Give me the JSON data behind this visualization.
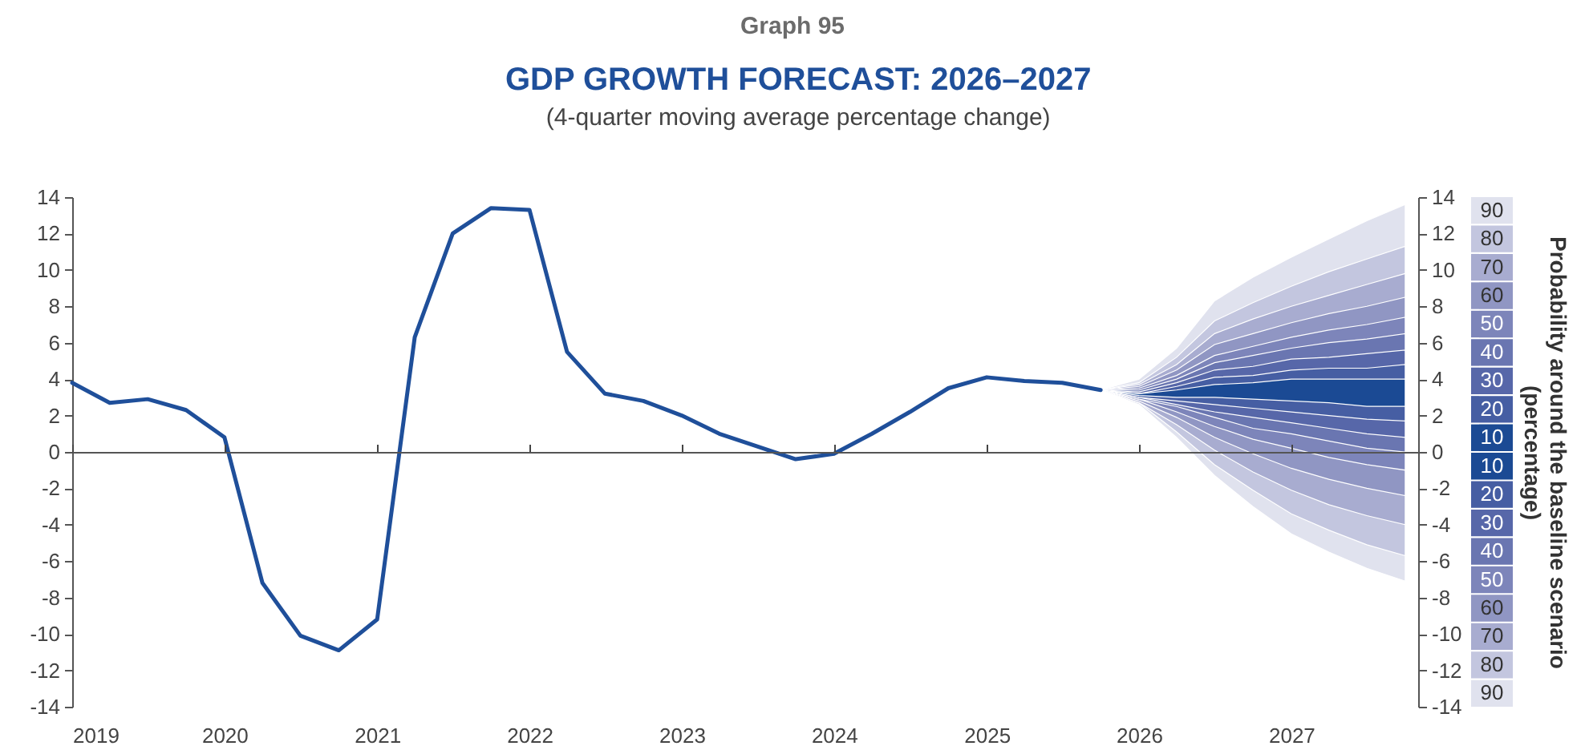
{
  "chart_data": {
    "type": "line",
    "title": "GDP GROWTH FORECAST: 2026–2027",
    "subtitle": "(4-quarter moving average percentage change)",
    "annotations": [
      "Graph 95"
    ],
    "y2label": "Probability around the baseline scenario (percentage)",
    "xlim": [
      "2019-01",
      "2027-11"
    ],
    "xticks": [
      "2019",
      "2020",
      "2021",
      "2022",
      "2023",
      "2024",
      "2025",
      "2026",
      "2027"
    ],
    "ylim": [
      -14,
      14
    ],
    "yticks": [
      -14,
      -12,
      -10,
      -8,
      -6,
      -4,
      -2,
      0,
      2,
      4,
      6,
      8,
      10,
      12,
      14
    ],
    "y2lim": [
      -14,
      14
    ],
    "y2ticks": [
      -14,
      -12,
      -10,
      -8,
      -6,
      -4,
      -2,
      0,
      2,
      4,
      6,
      8,
      10,
      12,
      14
    ],
    "legend": "right",
    "series": [
      {
        "axis": "y2",
        "name": "90",
        "color": "#e0e2ee",
        "x": [
          "2025-10",
          "2026-01",
          "2026-04",
          "2026-07",
          "2026-10",
          "2027-01",
          "2027-04",
          "2027-07",
          "2027-10"
        ],
        "values": [
          null,
          null,
          null,
          null,
          null,
          null,
          null,
          null,
          null
        ],
        "lower": [
          3.4,
          2.6,
          0.8,
          -1.3,
          -3.0,
          -4.5,
          -5.5,
          -6.4,
          -7.1
        ],
        "upper": [
          3.4,
          4.0,
          5.7,
          8.3,
          9.6,
          10.7,
          11.7,
          12.7,
          13.6
        ]
      },
      {
        "axis": "y2",
        "name": "80",
        "color": "#c3c6df",
        "x": [
          "2025-10",
          "2026-01",
          "2026-04",
          "2026-07",
          "2026-10",
          "2027-01",
          "2027-04",
          "2027-07",
          "2027-10"
        ],
        "values": [
          null,
          null,
          null,
          null,
          null,
          null,
          null,
          null,
          null
        ],
        "lower": [
          3.4,
          2.7,
          1.1,
          -0.7,
          -2.1,
          -3.4,
          -4.3,
          -5.1,
          -5.7
        ],
        "upper": [
          3.4,
          3.8,
          5.2,
          7.2,
          8.2,
          9.1,
          9.9,
          10.6,
          11.3
        ]
      },
      {
        "axis": "y2",
        "name": "70",
        "color": "#a8acd0",
        "x": [
          "2025-10",
          "2026-01",
          "2026-04",
          "2026-07",
          "2026-10",
          "2027-01",
          "2027-04",
          "2027-07",
          "2027-10"
        ],
        "values": [
          null,
          null,
          null,
          null,
          null,
          null,
          null,
          null,
          null
        ],
        "lower": [
          3.4,
          2.7,
          1.5,
          0.1,
          -1.1,
          -2.1,
          -2.9,
          -3.5,
          -4.0
        ],
        "upper": [
          3.4,
          3.7,
          4.8,
          6.5,
          7.3,
          8.0,
          8.6,
          9.2,
          9.8
        ]
      },
      {
        "axis": "y2",
        "name": "60",
        "color": "#9096c3",
        "x": [
          "2025-10",
          "2026-01",
          "2026-04",
          "2026-07",
          "2026-10",
          "2027-01",
          "2027-04",
          "2027-07",
          "2027-10"
        ],
        "values": [
          null,
          null,
          null,
          null,
          null,
          null,
          null,
          null,
          null
        ],
        "lower": [
          3.4,
          2.8,
          1.9,
          0.8,
          -0.1,
          -0.9,
          -1.5,
          -2.0,
          -2.4
        ],
        "upper": [
          3.4,
          3.6,
          4.5,
          5.9,
          6.5,
          7.1,
          7.6,
          8.0,
          8.5
        ]
      },
      {
        "axis": "y2",
        "name": "50",
        "color": "#7d85ba",
        "x": [
          "2025-10",
          "2026-01",
          "2026-04",
          "2026-07",
          "2026-10",
          "2027-01",
          "2027-04",
          "2027-07",
          "2027-10"
        ],
        "values": [
          null,
          null,
          null,
          null,
          null,
          null,
          null,
          null,
          null
        ],
        "lower": [
          3.4,
          2.9,
          2.2,
          1.4,
          0.7,
          0.2,
          -0.3,
          -0.7,
          -1.0
        ],
        "upper": [
          3.4,
          3.5,
          4.2,
          5.3,
          5.8,
          6.3,
          6.7,
          7.0,
          7.4
        ]
      },
      {
        "axis": "y2",
        "name": "40",
        "color": "#6a76b1",
        "x": [
          "2025-10",
          "2026-01",
          "2026-04",
          "2026-07",
          "2026-10",
          "2027-01",
          "2027-04",
          "2027-07",
          "2027-10"
        ],
        "values": [
          null,
          null,
          null,
          null,
          null,
          null,
          null,
          null,
          null
        ],
        "lower": [
          3.4,
          2.9,
          2.5,
          1.9,
          1.3,
          1.0,
          0.6,
          0.2,
          0.0
        ],
        "upper": [
          3.4,
          3.4,
          4.0,
          4.9,
          5.3,
          5.7,
          6.0,
          6.2,
          6.5
        ]
      },
      {
        "axis": "y2",
        "name": "30",
        "color": "#5767a9",
        "x": [
          "2025-10",
          "2026-01",
          "2026-04",
          "2026-07",
          "2026-10",
          "2027-01",
          "2027-04",
          "2027-07",
          "2027-10"
        ],
        "values": [
          null,
          null,
          null,
          null,
          null,
          null,
          null,
          null,
          null
        ],
        "lower": [
          3.4,
          3.0,
          2.6,
          2.2,
          1.9,
          1.6,
          1.3,
          1.0,
          0.8
        ],
        "upper": [
          3.4,
          3.3,
          3.8,
          4.5,
          4.7,
          5.1,
          5.2,
          5.4,
          5.6
        ]
      },
      {
        "axis": "y2",
        "name": "20",
        "color": "#465ea3",
        "x": [
          "2025-10",
          "2026-01",
          "2026-04",
          "2026-07",
          "2026-10",
          "2027-01",
          "2027-04",
          "2027-07",
          "2027-10"
        ],
        "values": [
          null,
          null,
          null,
          null,
          null,
          null,
          null,
          null,
          null
        ],
        "lower": [
          3.4,
          3.0,
          2.8,
          2.6,
          2.4,
          2.2,
          2.0,
          1.8,
          1.7
        ],
        "upper": [
          3.4,
          3.2,
          3.6,
          4.1,
          4.2,
          4.5,
          4.6,
          4.6,
          4.8
        ]
      },
      {
        "axis": "y2",
        "name": "10",
        "color": "#1b4a94",
        "x": [
          "2025-10",
          "2026-01",
          "2026-04",
          "2026-07",
          "2026-10",
          "2027-01",
          "2027-04",
          "2027-07",
          "2027-10"
        ],
        "values": [
          null,
          null,
          null,
          null,
          null,
          null,
          null,
          null,
          null
        ],
        "lower": [
          3.4,
          3.1,
          3.0,
          3.0,
          2.9,
          2.8,
          2.7,
          2.5,
          2.5
        ],
        "upper": [
          3.4,
          3.2,
          3.4,
          3.7,
          3.8,
          4.0,
          4.0,
          4.0,
          4.0
        ]
      },
      {
        "color": "#1f4f9a",
        "x": [
          "2019-01",
          "2019-04",
          "2019-07",
          "2019-10",
          "2020-01",
          "2020-04",
          "2020-07",
          "2020-10",
          "2021-01",
          "2021-04",
          "2021-07",
          "2021-10",
          "2022-01",
          "2022-04",
          "2022-07",
          "2022-10",
          "2023-01",
          "2023-04",
          "2023-07",
          "2023-10",
          "2024-01",
          "2024-04",
          "2024-07",
          "2024-10",
          "2025-01",
          "2025-04",
          "2025-07",
          "2025-10"
        ],
        "values": [
          3.8,
          2.7,
          2.9,
          2.3,
          0.8,
          -7.2,
          -10.1,
          -10.9,
          -9.2,
          6.3,
          12.0,
          13.4,
          13.3,
          5.5,
          3.2,
          2.8,
          2.0,
          1.0,
          0.3,
          -0.4,
          -0.1,
          1.0,
          2.2,
          3.5,
          4.1,
          3.9,
          3.8,
          3.4
        ]
      }
    ]
  }
}
